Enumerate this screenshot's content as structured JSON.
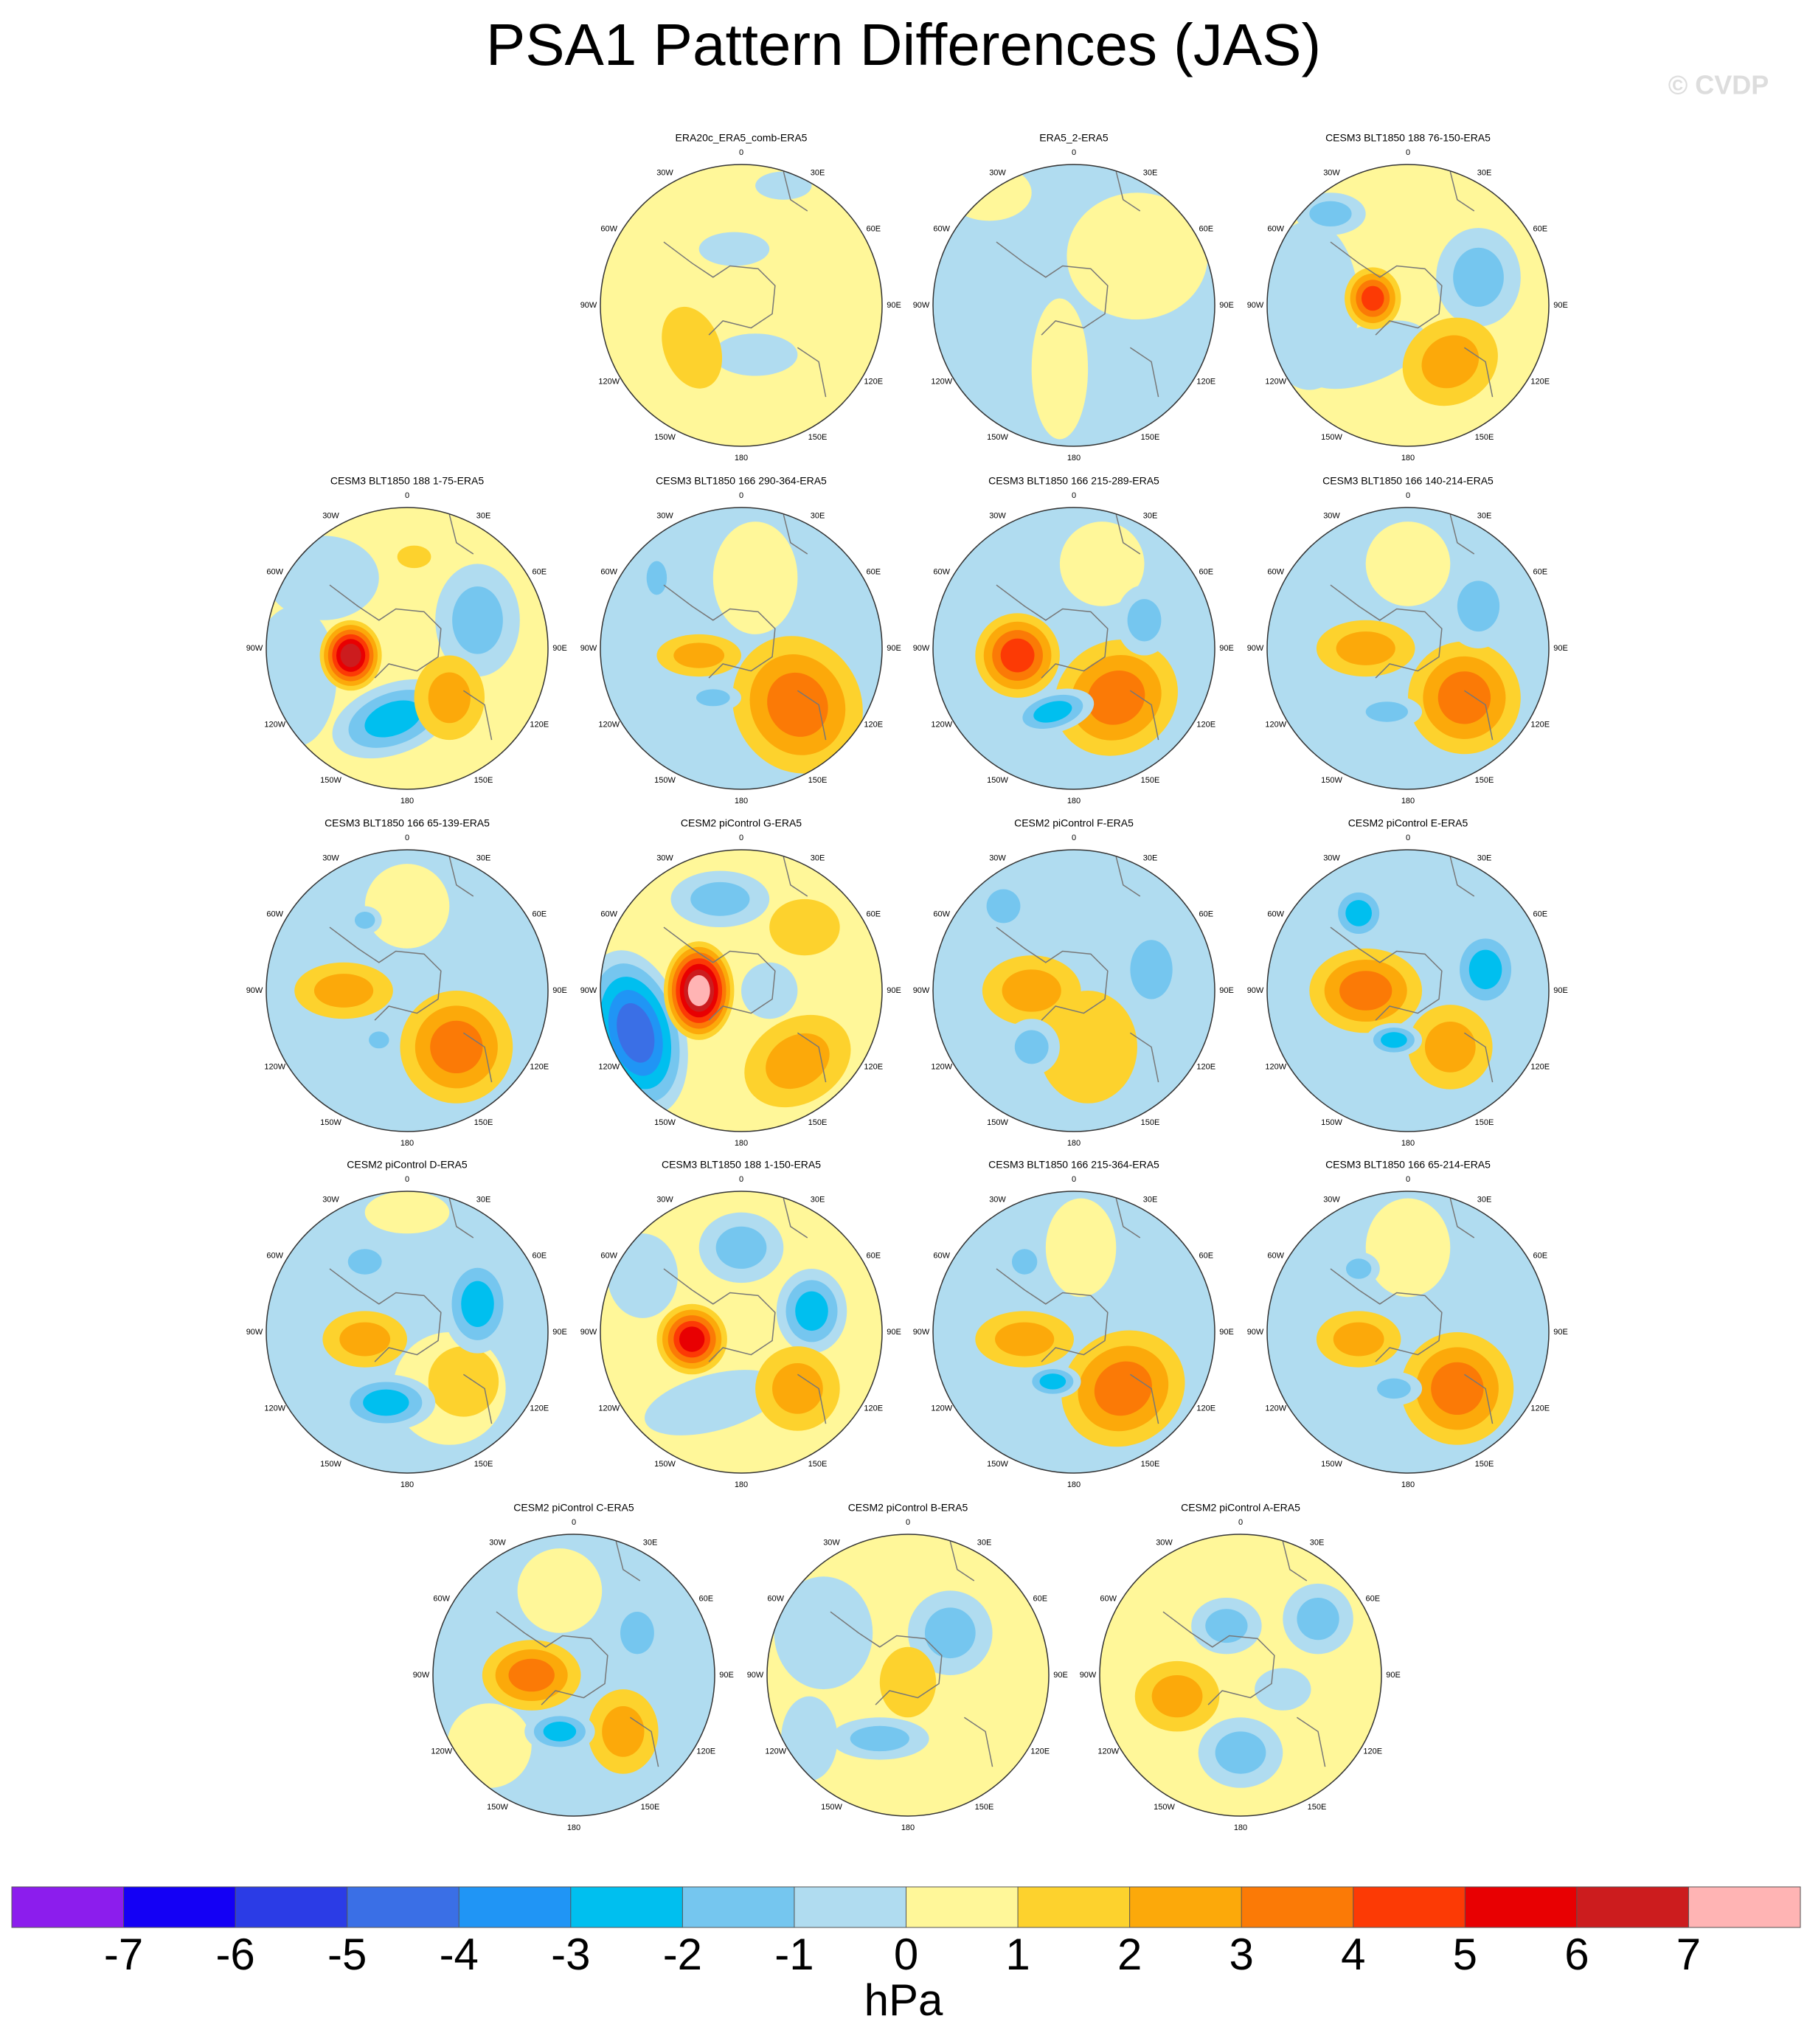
{
  "title": "PSA1 Pattern Differences (JAS)",
  "watermark": "© CVDP",
  "lon_labels": [
    "0",
    "30E",
    "60E",
    "90E",
    "120E",
    "150E",
    "180",
    "150W",
    "120W",
    "90W",
    "60W",
    "30W"
  ],
  "panels": [
    {
      "title": "ERA20c_ERA5_comb-ERA5"
    },
    {
      "title": "ERA5_2-ERA5"
    },
    {
      "title": "CESM3 BLT1850 188 76-150-ERA5"
    },
    {
      "title": "CESM3 BLT1850 188 1-75-ERA5"
    },
    {
      "title": "CESM3 BLT1850 166 290-364-ERA5"
    },
    {
      "title": "CESM3 BLT1850 166 215-289-ERA5"
    },
    {
      "title": "CESM3 BLT1850 166 140-214-ERA5"
    },
    {
      "title": "CESM3 BLT1850 166 65-139-ERA5"
    },
    {
      "title": "CESM2 piControl G-ERA5"
    },
    {
      "title": "CESM2 piControl F-ERA5"
    },
    {
      "title": "CESM2 piControl E-ERA5"
    },
    {
      "title": "CESM2 piControl D-ERA5"
    },
    {
      "title": "CESM3 BLT1850 188 1-150-ERA5"
    },
    {
      "title": "CESM3 BLT1850 166 215-364-ERA5"
    },
    {
      "title": "CESM3 BLT1850 166 65-214-ERA5"
    },
    {
      "title": "CESM2 piControl C-ERA5"
    },
    {
      "title": "CESM2 piControl B-ERA5"
    },
    {
      "title": "CESM2 piControl A-ERA5"
    }
  ],
  "colorbar": {
    "colors": [
      "#8c1ded",
      "#1400f5",
      "#2b3ce6",
      "#3a6fe6",
      "#2095f5",
      "#00bfef",
      "#75c6ef",
      "#b0dcf0",
      "#fff799",
      "#fdd22d",
      "#fca90a",
      "#fb7a06",
      "#fc3a05",
      "#e80002",
      "#cc1c1e",
      "#ffb4b4"
    ],
    "ticks": [
      -7,
      -6,
      -5,
      -4,
      -3,
      -2,
      -1,
      0,
      1,
      2,
      3,
      4,
      5,
      6,
      7
    ],
    "label": "hPa"
  }
}
